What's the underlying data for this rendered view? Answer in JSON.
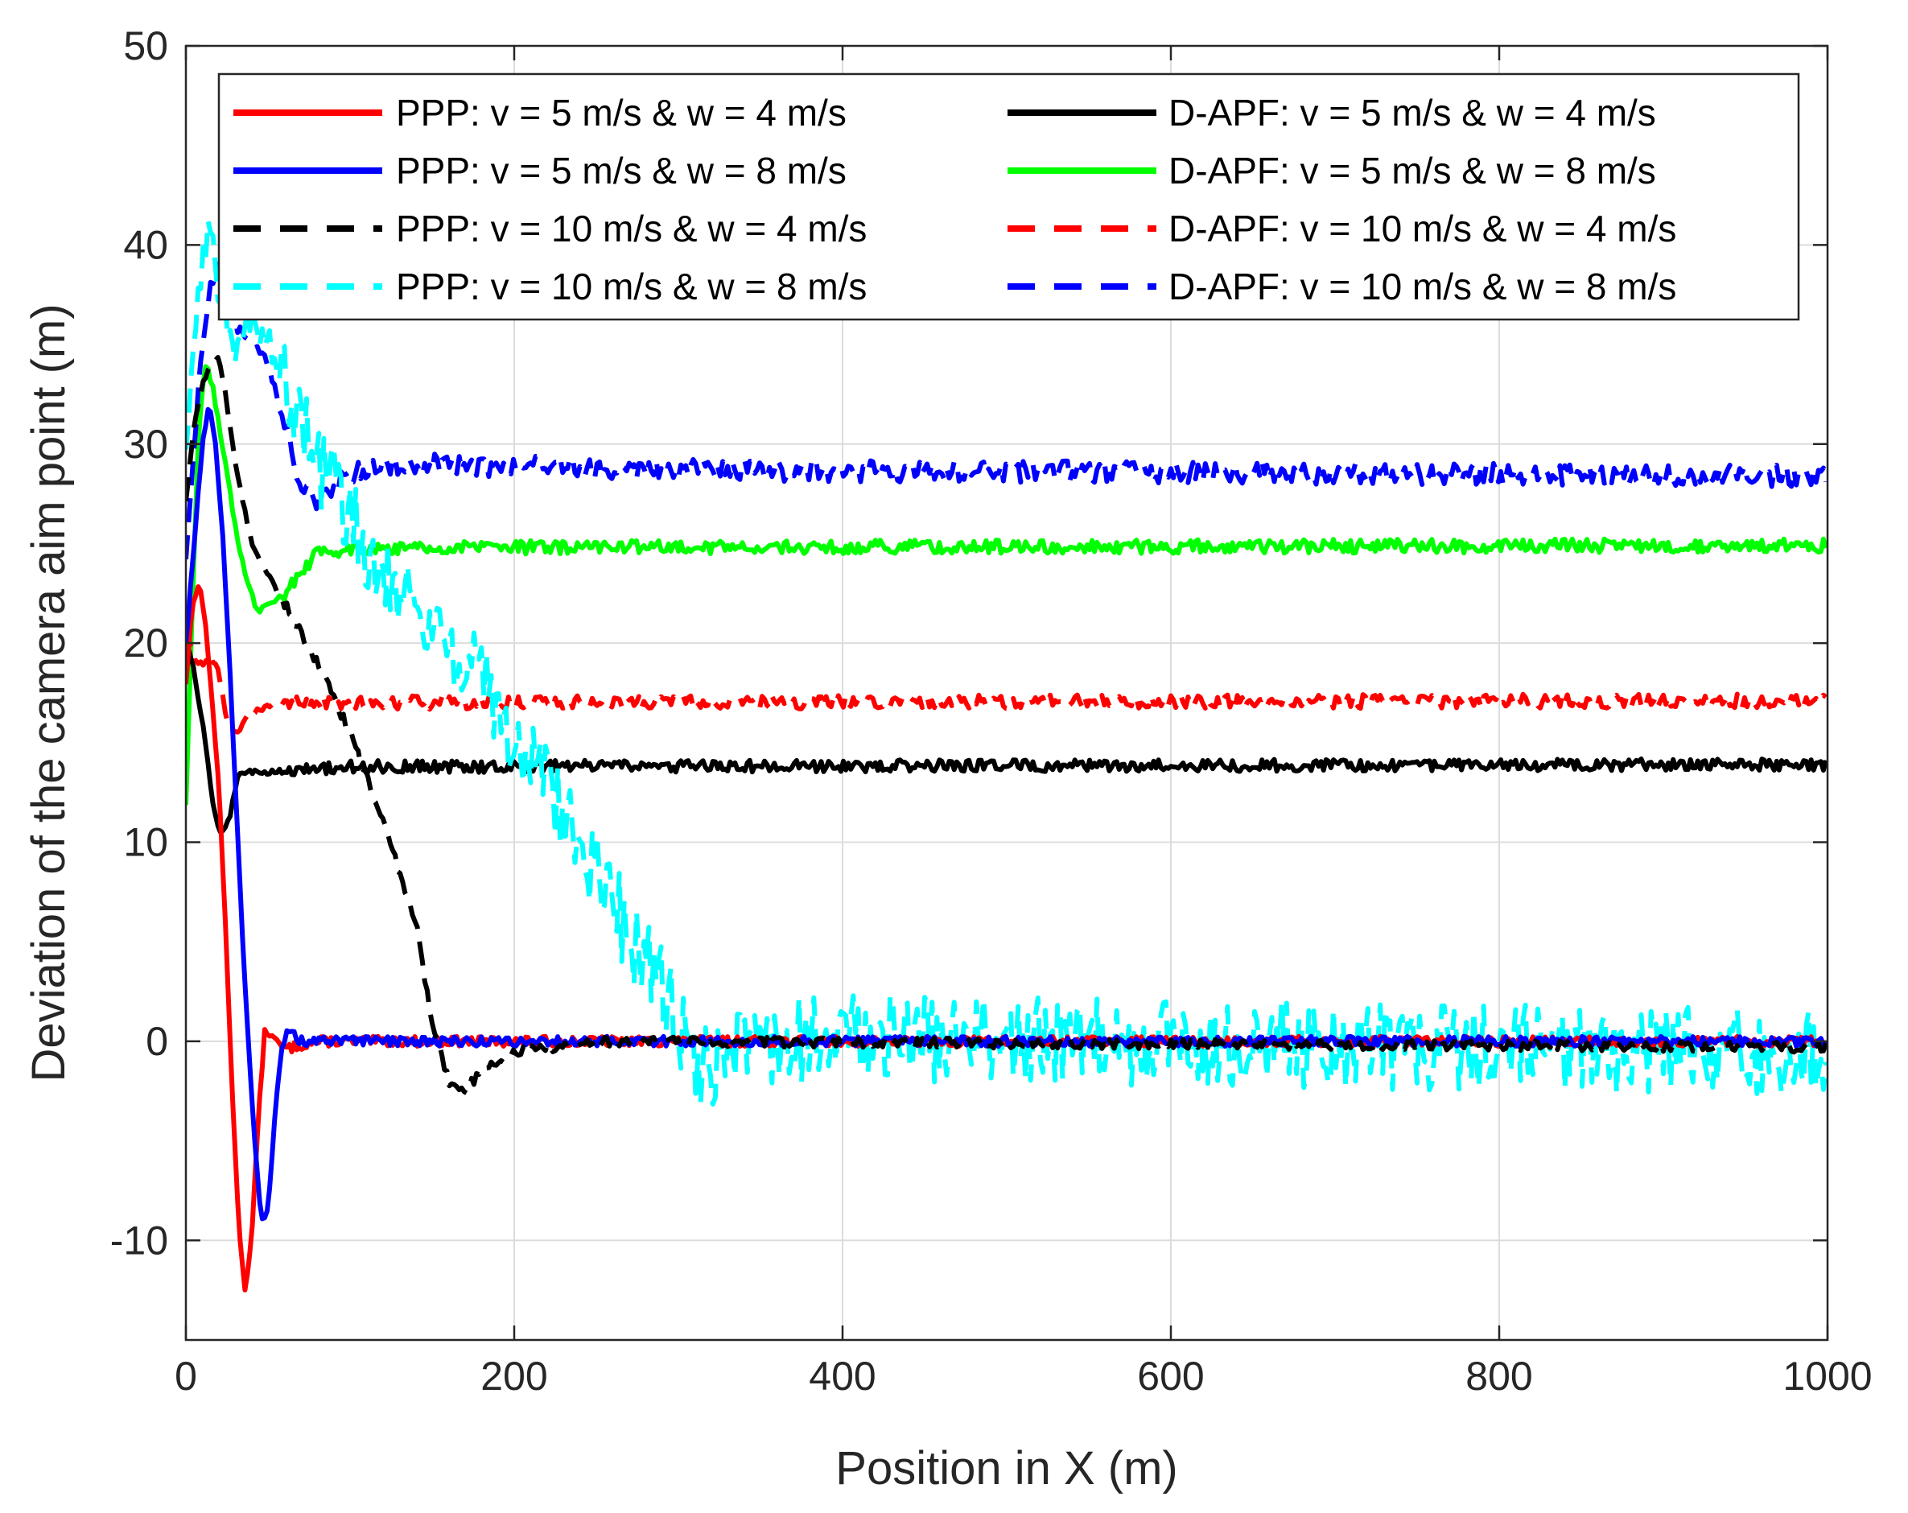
{
  "chart_data": {
    "type": "line",
    "title": "",
    "xlabel": "Position in X (m)",
    "ylabel": "Deviation of the camera aim point (m)",
    "xlim": [
      0,
      1000
    ],
    "ylim": [
      -15,
      50
    ],
    "xticks": [
      0,
      200,
      400,
      600,
      800,
      1000
    ],
    "yticks": [
      -10,
      0,
      10,
      20,
      30,
      40,
      50
    ],
    "xtick_labels": [
      "0",
      "200",
      "400",
      "600",
      "800",
      "1000"
    ],
    "ytick_labels": [
      "-10",
      "0",
      "10",
      "20",
      "30",
      "40",
      "50"
    ],
    "grid": true,
    "legend_position": "top",
    "series": [
      {
        "name": "PPP: v = 5 m/s & w = 4 m/s",
        "color": "#ff0000",
        "dash": "solid",
        "noise": 0.25,
        "points": [
          [
            0,
            18
          ],
          [
            4,
            22
          ],
          [
            8,
            23
          ],
          [
            12,
            21
          ],
          [
            16,
            17
          ],
          [
            20,
            13
          ],
          [
            24,
            6
          ],
          [
            28,
            -2
          ],
          [
            32,
            -9
          ],
          [
            36,
            -12.5
          ],
          [
            40,
            -10
          ],
          [
            44,
            -4
          ],
          [
            48,
            0.5
          ],
          [
            52,
            0.3
          ],
          [
            60,
            -0.4
          ],
          [
            80,
            0
          ],
          [
            1000,
            0
          ]
        ]
      },
      {
        "name": "PPP: v = 5 m/s & w = 8 m/s",
        "color": "#0000ff",
        "dash": "solid",
        "noise": 0.25,
        "points": [
          [
            0,
            20
          ],
          [
            6,
            26
          ],
          [
            10,
            30
          ],
          [
            14,
            32
          ],
          [
            18,
            30
          ],
          [
            22,
            26
          ],
          [
            26,
            20
          ],
          [
            30,
            13
          ],
          [
            34,
            6
          ],
          [
            38,
            0
          ],
          [
            42,
            -5
          ],
          [
            46,
            -9
          ],
          [
            50,
            -8.5
          ],
          [
            54,
            -4
          ],
          [
            58,
            -0.5
          ],
          [
            62,
            0.5
          ],
          [
            70,
            0
          ],
          [
            1000,
            0
          ]
        ]
      },
      {
        "name": "PPP: v = 10 m/s & w = 4 m/s",
        "color": "#000000",
        "dash": "dash",
        "noise": 0.25,
        "points": [
          [
            0,
            27
          ],
          [
            5,
            31
          ],
          [
            10,
            33
          ],
          [
            15,
            34
          ],
          [
            20,
            34.5
          ],
          [
            25,
            32
          ],
          [
            30,
            29
          ],
          [
            35,
            27
          ],
          [
            40,
            25
          ],
          [
            60,
            22
          ],
          [
            80,
            19
          ],
          [
            100,
            15.5
          ],
          [
            120,
            11
          ],
          [
            140,
            6
          ],
          [
            150,
            1
          ],
          [
            160,
            -2
          ],
          [
            170,
            -2.5
          ],
          [
            180,
            -1.5
          ],
          [
            200,
            -0.5
          ],
          [
            260,
            0
          ],
          [
            1000,
            -0.3
          ]
        ]
      },
      {
        "name": "PPP: v = 10 m/s & w = 8 m/s",
        "color": "#00ffff",
        "dash": "dash",
        "noise": 2.2,
        "points": [
          [
            0,
            30
          ],
          [
            5,
            35
          ],
          [
            10,
            39
          ],
          [
            14,
            41
          ],
          [
            20,
            38
          ],
          [
            30,
            35
          ],
          [
            40,
            36
          ],
          [
            50,
            35
          ],
          [
            60,
            34
          ],
          [
            70,
            31
          ],
          [
            80,
            29
          ],
          [
            90,
            28
          ],
          [
            100,
            26
          ],
          [
            120,
            24
          ],
          [
            140,
            22
          ],
          [
            160,
            20
          ],
          [
            180,
            18
          ],
          [
            200,
            15
          ],
          [
            220,
            13
          ],
          [
            240,
            10
          ],
          [
            260,
            7
          ],
          [
            280,
            4
          ],
          [
            300,
            1
          ],
          [
            315,
            -1.5
          ],
          [
            330,
            -0.5
          ],
          [
            380,
            0.2
          ],
          [
            1000,
            -0.6
          ]
        ]
      },
      {
        "name": "D-APF: v = 5 m/s & w = 4 m/s",
        "color": "#000000",
        "dash": "solid",
        "noise": 0.3,
        "points": [
          [
            0,
            20
          ],
          [
            4,
            19
          ],
          [
            8,
            17
          ],
          [
            12,
            15
          ],
          [
            16,
            12
          ],
          [
            20,
            10.5
          ],
          [
            26,
            11
          ],
          [
            32,
            13.5
          ],
          [
            40,
            13.5
          ],
          [
            100,
            13.8
          ],
          [
            1000,
            13.9
          ]
        ]
      },
      {
        "name": "D-APF: v = 5 m/s & w = 8 m/s",
        "color": "#00ff00",
        "dash": "solid",
        "noise": 0.35,
        "points": [
          [
            0,
            12
          ],
          [
            4,
            22
          ],
          [
            8,
            31
          ],
          [
            12,
            34
          ],
          [
            16,
            33
          ],
          [
            20,
            31
          ],
          [
            26,
            28
          ],
          [
            32,
            25
          ],
          [
            38,
            23
          ],
          [
            44,
            21.5
          ],
          [
            50,
            22
          ],
          [
            60,
            22.5
          ],
          [
            70,
            23.5
          ],
          [
            80,
            24.5
          ],
          [
            100,
            24.8
          ],
          [
            1000,
            24.9
          ]
        ]
      },
      {
        "name": "D-APF: v = 10 m/s & w = 4 m/s",
        "color": "#ff0000",
        "dash": "dash",
        "noise": 0.35,
        "points": [
          [
            0,
            21
          ],
          [
            5,
            19
          ],
          [
            10,
            19
          ],
          [
            15,
            19.5
          ],
          [
            20,
            18.5
          ],
          [
            25,
            16
          ],
          [
            30,
            15.5
          ],
          [
            40,
            16.5
          ],
          [
            60,
            17
          ],
          [
            1000,
            17.1
          ]
        ]
      },
      {
        "name": "D-APF: v = 10 m/s & w = 8 m/s",
        "color": "#0000ff",
        "dash": "dash",
        "noise": 0.55,
        "points": [
          [
            0,
            24
          ],
          [
            5,
            30
          ],
          [
            10,
            35
          ],
          [
            15,
            38
          ],
          [
            20,
            39
          ],
          [
            25,
            37
          ],
          [
            30,
            36
          ],
          [
            40,
            35
          ],
          [
            50,
            34
          ],
          [
            60,
            31
          ],
          [
            70,
            28
          ],
          [
            80,
            27
          ],
          [
            90,
            28
          ],
          [
            100,
            28.5
          ],
          [
            120,
            29
          ],
          [
            300,
            28.7
          ],
          [
            1000,
            28.4
          ]
        ]
      }
    ]
  }
}
